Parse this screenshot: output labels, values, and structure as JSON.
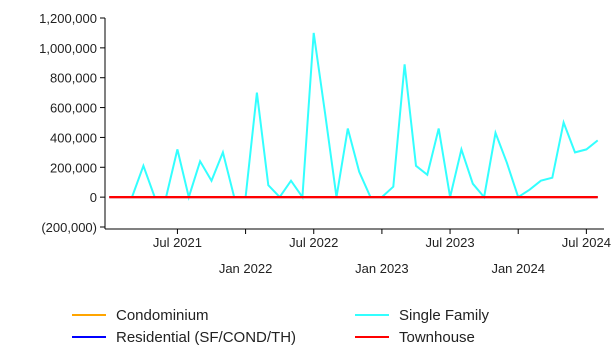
{
  "chart_data": {
    "type": "line",
    "title": "",
    "xlabel": "",
    "ylabel": "",
    "ylim": [
      -200000,
      1200000
    ],
    "y_ticks": [
      {
        "value": 1200000,
        "label": "1,200,000"
      },
      {
        "value": 1000000,
        "label": "1,000,000"
      },
      {
        "value": 800000,
        "label": "800,000"
      },
      {
        "value": 600000,
        "label": "600,000"
      },
      {
        "value": 400000,
        "label": "400,000"
      },
      {
        "value": 200000,
        "label": "200,000"
      },
      {
        "value": 0,
        "label": "0"
      },
      {
        "value": -200000,
        "label": "(200,000)"
      }
    ],
    "x_ticks": [
      {
        "label": "Jul 2021",
        "date": "2021-07",
        "row": 1
      },
      {
        "label": "Jan 2022",
        "date": "2022-01",
        "row": 2
      },
      {
        "label": "Jul 2022",
        "date": "2022-07",
        "row": 1
      },
      {
        "label": "Jan 2023",
        "date": "2023-01",
        "row": 2
      },
      {
        "label": "Jul 2023",
        "date": "2023-07",
        "row": 1
      },
      {
        "label": "Jan 2024",
        "date": "2024-01",
        "row": 2
      },
      {
        "label": "Jul 2024",
        "date": "2024-07",
        "row": 1
      }
    ],
    "x_range": [
      "2021-01",
      "2024-08"
    ],
    "grid": false,
    "legend_position": "bottom",
    "series": [
      {
        "name": "Condominium",
        "color": "#ffa500",
        "points": [
          [
            "2021-01",
            0
          ],
          [
            "2024-08",
            0
          ]
        ]
      },
      {
        "name": "Single Family",
        "color": "#33ffff",
        "points": [
          [
            "2021-03",
            0
          ],
          [
            "2021-04",
            210000
          ],
          [
            "2021-05",
            0
          ],
          [
            "2021-06",
            0
          ],
          [
            "2021-07",
            320000
          ],
          [
            "2021-08",
            0
          ],
          [
            "2021-09",
            240000
          ],
          [
            "2021-10",
            110000
          ],
          [
            "2021-11",
            300000
          ],
          [
            "2021-12",
            0
          ],
          [
            "2022-01",
            0
          ],
          [
            "2022-02",
            700000
          ],
          [
            "2022-03",
            80000
          ],
          [
            "2022-04",
            0
          ],
          [
            "2022-05",
            110000
          ],
          [
            "2022-06",
            0
          ],
          [
            "2022-07",
            1100000
          ],
          [
            "2022-08",
            560000
          ],
          [
            "2022-09",
            0
          ],
          [
            "2022-10",
            460000
          ],
          [
            "2022-11",
            170000
          ],
          [
            "2022-12",
            0
          ],
          [
            "2023-01",
            0
          ],
          [
            "2023-02",
            70000
          ],
          [
            "2023-03",
            890000
          ],
          [
            "2023-04",
            210000
          ],
          [
            "2023-05",
            150000
          ],
          [
            "2023-06",
            460000
          ],
          [
            "2023-07",
            0
          ],
          [
            "2023-08",
            320000
          ],
          [
            "2023-09",
            90000
          ],
          [
            "2023-10",
            0
          ],
          [
            "2023-11",
            430000
          ],
          [
            "2023-12",
            230000
          ],
          [
            "2024-01",
            0
          ],
          [
            "2024-02",
            50000
          ],
          [
            "2024-03",
            110000
          ],
          [
            "2024-04",
            130000
          ],
          [
            "2024-05",
            500000
          ],
          [
            "2024-06",
            300000
          ],
          [
            "2024-07",
            320000
          ],
          [
            "2024-08",
            380000
          ]
        ]
      },
      {
        "name": "Residential (SF/COND/TH)",
        "color": "#0000ff",
        "points": [
          [
            "2021-01",
            0
          ],
          [
            "2024-08",
            0
          ]
        ]
      },
      {
        "name": "Townhouse",
        "color": "#ff0000",
        "points": [
          [
            "2021-01",
            0
          ],
          [
            "2024-08",
            0
          ]
        ]
      }
    ]
  }
}
